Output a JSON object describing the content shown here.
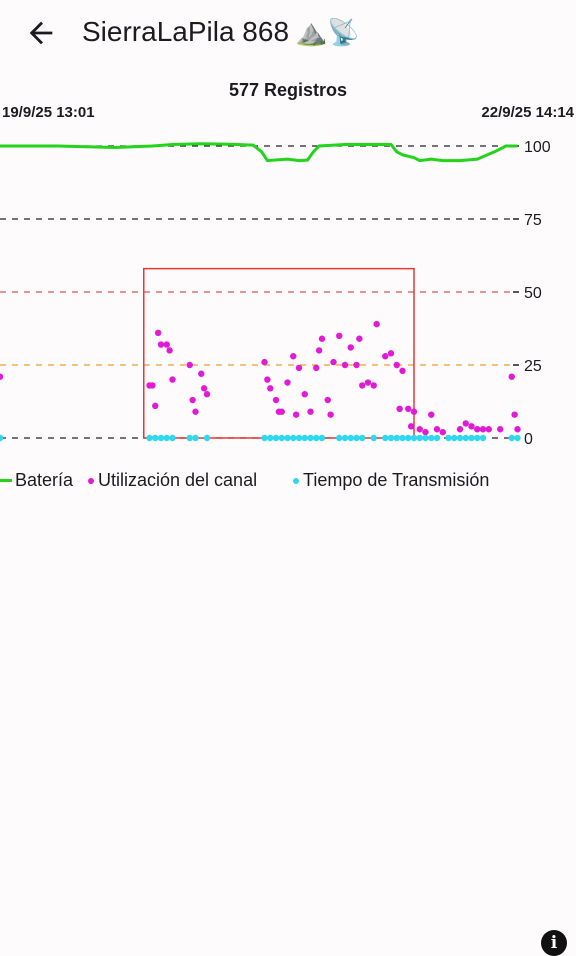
{
  "header": {
    "title": "SierraLaPila 868",
    "emoji": "⛰️📡"
  },
  "chart_data": {
    "type": "scatter",
    "title": "577 Registros",
    "x_start_label": "19/9/25 13:01",
    "x_end_label": "22/9/25 14:14",
    "ylim": [
      0,
      100
    ],
    "y_ticks": [
      "100",
      "75",
      "50",
      "25",
      "0"
    ],
    "y_tick_values": [
      100,
      75,
      50,
      25,
      0
    ],
    "reference_line_colors": [
      "#222222",
      "#222222",
      "#d9534f",
      "#f0a030",
      "#222222"
    ],
    "highlight_box": {
      "x_range": [
        0.25,
        0.72
      ],
      "y_range": [
        0,
        58
      ],
      "color": "#e53935"
    },
    "series": [
      {
        "name": "Batería",
        "type": "line",
        "color": "#22d51a",
        "points": [
          [
            0,
            100
          ],
          [
            0.05,
            100
          ],
          [
            0.1,
            100
          ],
          [
            0.2,
            99.5
          ],
          [
            0.265,
            100
          ],
          [
            0.3,
            100.5
          ],
          [
            0.35,
            100.8
          ],
          [
            0.4,
            100.6
          ],
          [
            0.44,
            100.3
          ],
          [
            0.455,
            98
          ],
          [
            0.465,
            95
          ],
          [
            0.5,
            95.5
          ],
          [
            0.52,
            95
          ],
          [
            0.535,
            95.2
          ],
          [
            0.545,
            98
          ],
          [
            0.555,
            100
          ],
          [
            0.6,
            100.5
          ],
          [
            0.65,
            100.5
          ],
          [
            0.68,
            100.5
          ],
          [
            0.69,
            98
          ],
          [
            0.7,
            97
          ],
          [
            0.72,
            96
          ],
          [
            0.73,
            95
          ],
          [
            0.75,
            95.5
          ],
          [
            0.77,
            95
          ],
          [
            0.8,
            95
          ],
          [
            0.83,
            95.5
          ],
          [
            0.86,
            98
          ],
          [
            0.88,
            100
          ],
          [
            0.9,
            100
          ]
        ]
      },
      {
        "name": "Utilización del canal",
        "type": "scatter",
        "color": "#e21ad6",
        "points": [
          [
            0,
            21
          ],
          [
            0.26,
            18
          ],
          [
            0.265,
            18
          ],
          [
            0.27,
            11
          ],
          [
            0.275,
            36
          ],
          [
            0.28,
            32
          ],
          [
            0.29,
            32
          ],
          [
            0.295,
            30
          ],
          [
            0.3,
            20
          ],
          [
            0.33,
            25
          ],
          [
            0.335,
            13
          ],
          [
            0.34,
            9
          ],
          [
            0.35,
            22
          ],
          [
            0.355,
            17
          ],
          [
            0.36,
            15
          ],
          [
            0.46,
            26
          ],
          [
            0.465,
            20
          ],
          [
            0.47,
            17
          ],
          [
            0.48,
            13
          ],
          [
            0.485,
            9
          ],
          [
            0.49,
            9
          ],
          [
            0.5,
            19
          ],
          [
            0.51,
            28
          ],
          [
            0.515,
            8
          ],
          [
            0.52,
            24
          ],
          [
            0.53,
            15
          ],
          [
            0.54,
            9
          ],
          [
            0.55,
            24
          ],
          [
            0.555,
            30
          ],
          [
            0.56,
            34
          ],
          [
            0.57,
            13
          ],
          [
            0.575,
            8
          ],
          [
            0.58,
            26
          ],
          [
            0.59,
            35
          ],
          [
            0.6,
            25
          ],
          [
            0.61,
            31
          ],
          [
            0.62,
            25
          ],
          [
            0.625,
            34
          ],
          [
            0.63,
            18
          ],
          [
            0.64,
            19
          ],
          [
            0.65,
            18
          ],
          [
            0.655,
            39
          ],
          [
            0.67,
            28
          ],
          [
            0.68,
            29
          ],
          [
            0.69,
            25
          ],
          [
            0.695,
            10
          ],
          [
            0.7,
            23
          ],
          [
            0.71,
            10
          ],
          [
            0.715,
            4
          ],
          [
            0.72,
            9
          ],
          [
            0.73,
            3
          ],
          [
            0.74,
            2
          ],
          [
            0.75,
            8
          ],
          [
            0.76,
            3
          ],
          [
            0.77,
            2
          ],
          [
            0.8,
            3
          ],
          [
            0.81,
            5
          ],
          [
            0.82,
            4
          ],
          [
            0.83,
            3
          ],
          [
            0.84,
            3
          ],
          [
            0.85,
            3
          ],
          [
            0.87,
            3
          ],
          [
            0.89,
            21
          ],
          [
            0.895,
            8
          ],
          [
            0.9,
            3
          ]
        ]
      },
      {
        "name": "Tiempo de Transmisión",
        "type": "scatter",
        "color": "#2ed8ef",
        "points": [
          [
            0,
            0
          ],
          [
            0.26,
            0
          ],
          [
            0.27,
            0
          ],
          [
            0.28,
            0
          ],
          [
            0.29,
            0
          ],
          [
            0.3,
            0
          ],
          [
            0.33,
            0
          ],
          [
            0.34,
            0
          ],
          [
            0.36,
            0
          ],
          [
            0.46,
            0
          ],
          [
            0.47,
            0
          ],
          [
            0.48,
            0
          ],
          [
            0.49,
            0
          ],
          [
            0.5,
            0
          ],
          [
            0.51,
            0
          ],
          [
            0.52,
            0
          ],
          [
            0.53,
            0
          ],
          [
            0.54,
            0
          ],
          [
            0.55,
            0
          ],
          [
            0.56,
            0
          ],
          [
            0.59,
            0
          ],
          [
            0.6,
            0
          ],
          [
            0.61,
            0
          ],
          [
            0.62,
            0
          ],
          [
            0.63,
            0
          ],
          [
            0.65,
            0
          ],
          [
            0.67,
            0
          ],
          [
            0.68,
            0
          ],
          [
            0.69,
            0
          ],
          [
            0.7,
            0
          ],
          [
            0.71,
            0
          ],
          [
            0.72,
            0
          ],
          [
            0.73,
            0
          ],
          [
            0.74,
            0
          ],
          [
            0.75,
            0
          ],
          [
            0.76,
            0
          ],
          [
            0.78,
            0
          ],
          [
            0.79,
            0
          ],
          [
            0.8,
            0
          ],
          [
            0.81,
            0
          ],
          [
            0.82,
            0
          ],
          [
            0.83,
            0
          ],
          [
            0.84,
            0
          ],
          [
            0.89,
            0
          ],
          [
            0.9,
            0
          ]
        ]
      }
    ]
  }
}
